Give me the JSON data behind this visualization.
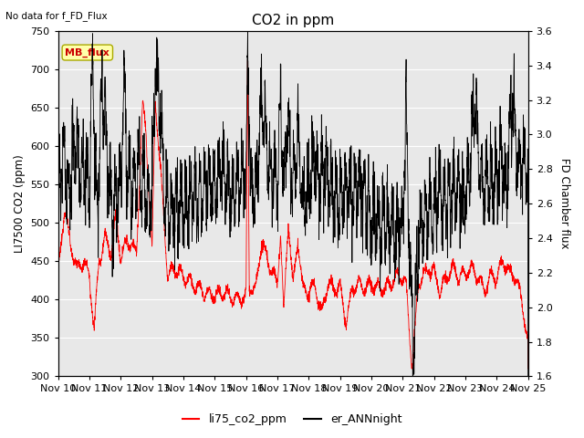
{
  "title": "CO2 in ppm",
  "ylabel_left": "LI7500 CO2 (ppm)",
  "ylabel_right": "FD Chamber flux",
  "top_left_text": "No data for f_FD_Flux",
  "legend_labels": [
    "li75_co2_ppm",
    "er_ANNnight"
  ],
  "ylim_left": [
    300,
    750
  ],
  "ylim_right": [
    1.6,
    3.6
  ],
  "yticks_left": [
    300,
    350,
    400,
    450,
    500,
    550,
    600,
    650,
    700,
    750
  ],
  "yticks_right": [
    1.6,
    1.8,
    2.0,
    2.2,
    2.4,
    2.6,
    2.8,
    3.0,
    3.2,
    3.4,
    3.6
  ],
  "xtick_labels": [
    "Nov 10",
    "Nov 11",
    "Nov 12",
    "Nov 13",
    "Nov 14",
    "Nov 15",
    "Nov 16",
    "Nov 17",
    "Nov 18",
    "Nov 19",
    "Nov 20",
    "Nov 21",
    "Nov 22",
    "Nov 23",
    "Nov 24",
    "Nov 25"
  ],
  "plot_bg_color": "#e8e8e8",
  "mb_flux_box_color": "#ffffaa",
  "mb_flux_text": "MB_flux",
  "mb_flux_text_color": "#cc0000",
  "grid_color": "white"
}
